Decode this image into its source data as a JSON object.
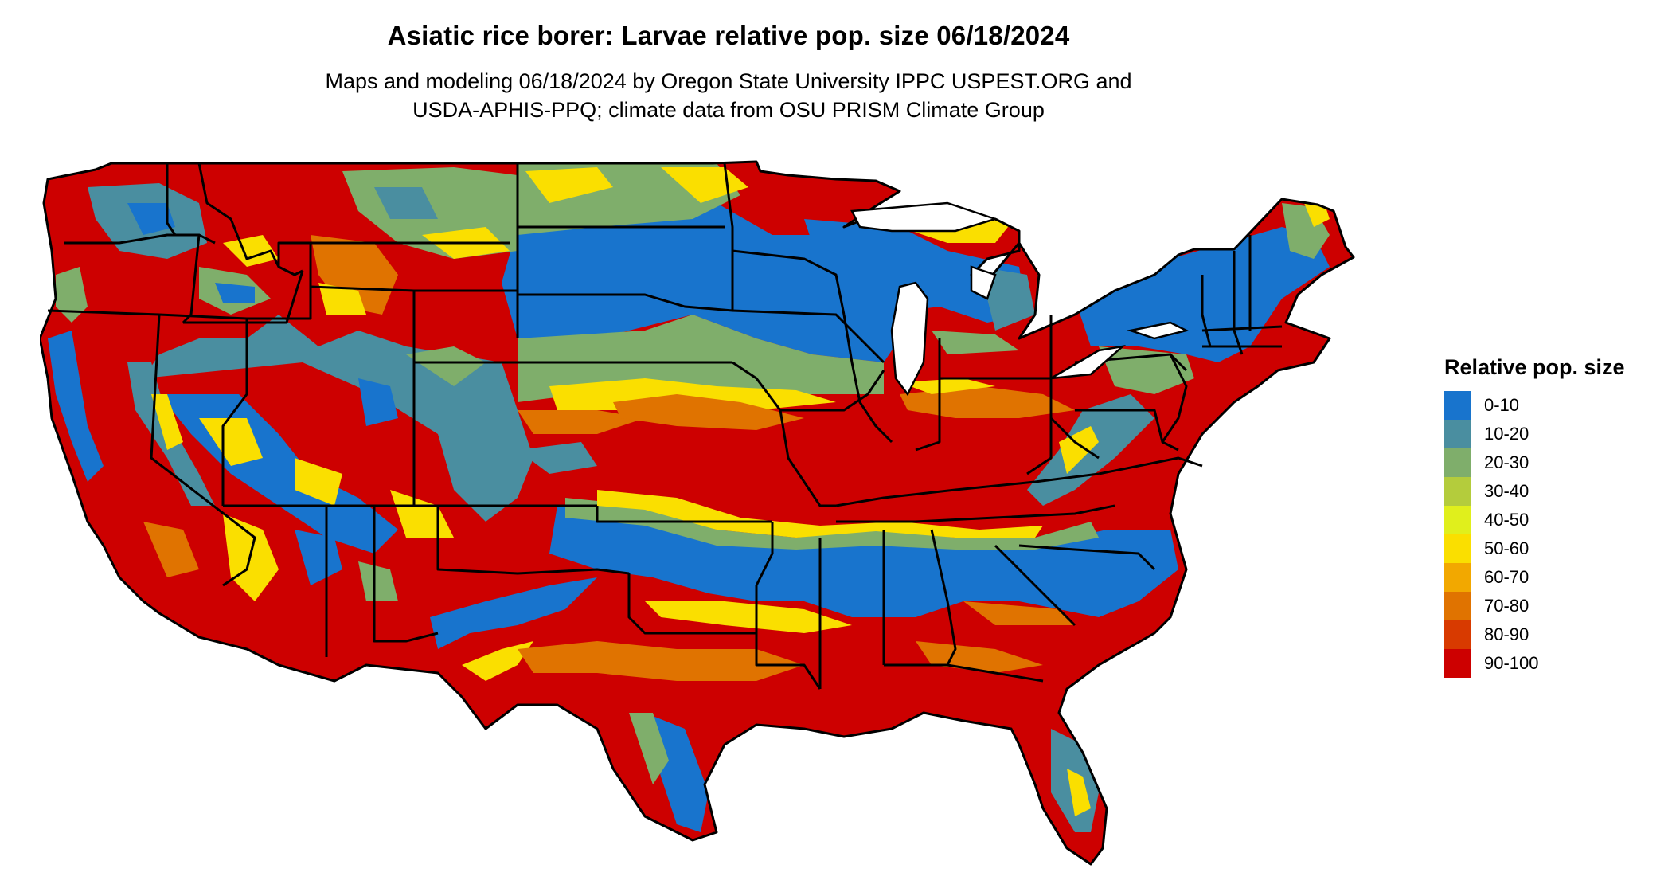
{
  "title": "Asiatic rice borer: Larvae relative pop. size 06/18/2024",
  "subtitle_line1": "Maps and modeling 06/18/2024 by Oregon State University IPPC USPEST.ORG and",
  "subtitle_line2": "USDA-APHIS-PPQ; climate data from OSU PRISM Climate Group",
  "legend": {
    "title": "Relative pop. size",
    "items": [
      {
        "label": "0-10",
        "color": "#1874cd"
      },
      {
        "label": "10-20",
        "color": "#4a8ea0"
      },
      {
        "label": "20-30",
        "color": "#7fae6b"
      },
      {
        "label": "30-40",
        "color": "#b4cc3c"
      },
      {
        "label": "40-50",
        "color": "#e0ef1c"
      },
      {
        "label": "50-60",
        "color": "#fadf00"
      },
      {
        "label": "60-70",
        "color": "#f2a800"
      },
      {
        "label": "70-80",
        "color": "#e07300"
      },
      {
        "label": "80-90",
        "color": "#d83a00"
      },
      {
        "label": "90-100",
        "color": "#cd0000"
      }
    ]
  },
  "colors": {
    "state_border": "#000000",
    "background": "#ffffff"
  }
}
